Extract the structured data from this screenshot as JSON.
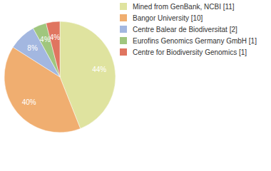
{
  "chart_data": {
    "type": "pie",
    "categories": [
      "Mined from GenBank, NCBI [11]",
      "Bangor University [10]",
      "Centre Balear de Biodiversitat [2]",
      "Eurofins Genomics Germany GmbH [1]",
      "Centre for Biodiversity Genomics [1]"
    ],
    "values": [
      44,
      40,
      8,
      4,
      4
    ],
    "value_labels": [
      "44%",
      "40%",
      "8%",
      "4%",
      "4%"
    ],
    "colors": [
      "#dfe39f",
      "#f0ae70",
      "#a3b7e0",
      "#a0c67e",
      "#e07560"
    ],
    "data_labels": true,
    "legend": "top-right"
  }
}
